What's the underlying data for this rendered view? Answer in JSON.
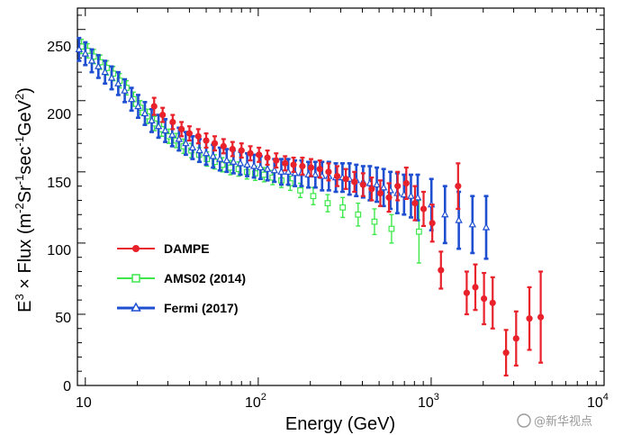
{
  "chart_data": {
    "type": "scatter",
    "title": "",
    "xlabel": "Energy (GeV)",
    "ylabel_main": "E",
    "ylabel_exp": "3",
    "ylabel_mid": " × Flux   (m",
    "ylabel_u1": "-2",
    "ylabel_u2": "Sr",
    "ylabel_u3": "-1",
    "ylabel_u4": "sec",
    "ylabel_u5": "-1",
    "ylabel_u6": "GeV",
    "ylabel_u7": "2",
    "ylabel_u8": ")",
    "xscale": "log",
    "xlim": [
      9,
      10000
    ],
    "ylim": [
      0,
      265
    ],
    "x_ticks": [
      {
        "value": 10,
        "base": "10",
        "exp": ""
      },
      {
        "value": 100,
        "base": "10",
        "exp": "2"
      },
      {
        "value": 1000,
        "base": "10",
        "exp": "3"
      },
      {
        "value": 10000,
        "base": "10",
        "exp": "4"
      }
    ],
    "y_ticks": [
      0,
      50,
      100,
      150,
      200,
      250
    ],
    "legend_position": "center-left",
    "series": [
      {
        "name": "DAMPE",
        "color": "#e8212a",
        "marker": "circle",
        "points": [
          {
            "x": 25,
            "y": 196,
            "err": 6
          },
          {
            "x": 28,
            "y": 190,
            "err": 5
          },
          {
            "x": 32,
            "y": 185,
            "err": 5
          },
          {
            "x": 36,
            "y": 180,
            "err": 5
          },
          {
            "x": 40,
            "y": 177,
            "err": 5
          },
          {
            "x": 45,
            "y": 175,
            "err": 5
          },
          {
            "x": 50,
            "y": 172,
            "err": 5
          },
          {
            "x": 56,
            "y": 170,
            "err": 5
          },
          {
            "x": 63,
            "y": 168,
            "err": 5
          },
          {
            "x": 71,
            "y": 166,
            "err": 5
          },
          {
            "x": 80,
            "y": 165,
            "err": 5
          },
          {
            "x": 90,
            "y": 163,
            "err": 5
          },
          {
            "x": 101,
            "y": 162,
            "err": 5
          },
          {
            "x": 113,
            "y": 160,
            "err": 5
          },
          {
            "x": 127,
            "y": 158,
            "err": 5
          },
          {
            "x": 143,
            "y": 156,
            "err": 5
          },
          {
            "x": 160,
            "y": 155,
            "err": 5
          },
          {
            "x": 180,
            "y": 154,
            "err": 6
          },
          {
            "x": 202,
            "y": 153,
            "err": 6
          },
          {
            "x": 227,
            "y": 152,
            "err": 6
          },
          {
            "x": 255,
            "y": 150,
            "err": 6
          },
          {
            "x": 286,
            "y": 147,
            "err": 7
          },
          {
            "x": 321,
            "y": 145,
            "err": 7
          },
          {
            "x": 360,
            "y": 143,
            "err": 7
          },
          {
            "x": 404,
            "y": 141,
            "err": 8
          },
          {
            "x": 453,
            "y": 138,
            "err": 8
          },
          {
            "x": 508,
            "y": 135,
            "err": 9
          },
          {
            "x": 570,
            "y": 132,
            "err": 10
          },
          {
            "x": 640,
            "y": 140,
            "err": 10
          },
          {
            "x": 718,
            "y": 142,
            "err": 11
          },
          {
            "x": 806,
            "y": 128,
            "err": 12
          },
          {
            "x": 904,
            "y": 124,
            "err": 12
          },
          {
            "x": 1015,
            "y": 114,
            "err": 13
          },
          {
            "x": 1139,
            "y": 81,
            "err": 13
          },
          {
            "x": 1431,
            "y": 140,
            "err": 16
          },
          {
            "x": 1605,
            "y": 65,
            "err": 15
          },
          {
            "x": 1801,
            "y": 69,
            "err": 16
          },
          {
            "x": 2021,
            "y": 61,
            "err": 18
          },
          {
            "x": 2268,
            "y": 58,
            "err": 18
          },
          {
            "x": 2711,
            "y": 23,
            "err": 16
          },
          {
            "x": 3100,
            "y": 33,
            "err": 19
          },
          {
            "x": 3700,
            "y": 47,
            "err": 22
          },
          {
            "x": 4300,
            "y": 48,
            "err": 32
          }
        ]
      },
      {
        "name": "AMS02 (2014)",
        "color": "#3ee84b",
        "marker": "square-open",
        "points": [
          {
            "x": 9.5,
            "y": 238,
            "err": 5
          },
          {
            "x": 10.3,
            "y": 235,
            "err": 5
          },
          {
            "x": 11.2,
            "y": 231,
            "err": 5
          },
          {
            "x": 12.2,
            "y": 227,
            "err": 5
          },
          {
            "x": 13.3,
            "y": 223,
            "err": 5
          },
          {
            "x": 14.5,
            "y": 219,
            "err": 5
          },
          {
            "x": 15.8,
            "y": 214,
            "err": 5
          },
          {
            "x": 17.3,
            "y": 209,
            "err": 5
          },
          {
            "x": 19.0,
            "y": 201,
            "err": 5
          },
          {
            "x": 20.8,
            "y": 195,
            "err": 5
          },
          {
            "x": 22.8,
            "y": 189,
            "err": 5
          },
          {
            "x": 25.1,
            "y": 184,
            "err": 5
          },
          {
            "x": 27.6,
            "y": 180,
            "err": 5
          },
          {
            "x": 30.4,
            "y": 175,
            "err": 5
          },
          {
            "x": 33.5,
            "y": 172,
            "err": 5
          },
          {
            "x": 37.0,
            "y": 168,
            "err": 5
          },
          {
            "x": 41.0,
            "y": 165,
            "err": 5
          },
          {
            "x": 45.5,
            "y": 162,
            "err": 5
          },
          {
            "x": 50.5,
            "y": 159,
            "err": 5
          },
          {
            "x": 56.0,
            "y": 157,
            "err": 5
          },
          {
            "x": 62.0,
            "y": 155,
            "err": 5
          },
          {
            "x": 69.0,
            "y": 153,
            "err": 5
          },
          {
            "x": 77.0,
            "y": 152,
            "err": 5
          },
          {
            "x": 86.0,
            "y": 150,
            "err": 5
          },
          {
            "x": 96.0,
            "y": 149,
            "err": 5
          },
          {
            "x": 108,
            "y": 148,
            "err": 5
          },
          {
            "x": 121,
            "y": 146,
            "err": 5
          },
          {
            "x": 136,
            "y": 144,
            "err": 5
          },
          {
            "x": 153,
            "y": 142,
            "err": 5
          },
          {
            "x": 175,
            "y": 137,
            "err": 5
          },
          {
            "x": 208,
            "y": 133,
            "err": 6
          },
          {
            "x": 252,
            "y": 128,
            "err": 6
          },
          {
            "x": 308,
            "y": 125,
            "err": 7
          },
          {
            "x": 378,
            "y": 120,
            "err": 8
          },
          {
            "x": 470,
            "y": 115,
            "err": 9
          },
          {
            "x": 590,
            "y": 110,
            "err": 10
          },
          {
            "x": 850,
            "y": 108,
            "err": 22
          }
        ]
      },
      {
        "name": "Fermi (2017)",
        "color": "#1f4fd1",
        "marker": "triangle-open",
        "points": [
          {
            "x": 9.2,
            "y": 236,
            "err": 8
          },
          {
            "x": 10.0,
            "y": 233,
            "err": 8
          },
          {
            "x": 10.9,
            "y": 228,
            "err": 8
          },
          {
            "x": 11.9,
            "y": 224,
            "err": 8
          },
          {
            "x": 13.0,
            "y": 220,
            "err": 8
          },
          {
            "x": 14.2,
            "y": 216,
            "err": 8
          },
          {
            "x": 15.5,
            "y": 212,
            "err": 8
          },
          {
            "x": 16.9,
            "y": 207,
            "err": 8
          },
          {
            "x": 18.5,
            "y": 201,
            "err": 8
          },
          {
            "x": 20.2,
            "y": 196,
            "err": 8
          },
          {
            "x": 22.1,
            "y": 191,
            "err": 8
          },
          {
            "x": 24.2,
            "y": 186,
            "err": 8
          },
          {
            "x": 26.5,
            "y": 182,
            "err": 8
          },
          {
            "x": 29.0,
            "y": 179,
            "err": 8
          },
          {
            "x": 31.8,
            "y": 176,
            "err": 8
          },
          {
            "x": 34.8,
            "y": 173,
            "err": 8
          },
          {
            "x": 38.1,
            "y": 170,
            "err": 8
          },
          {
            "x": 41.7,
            "y": 167,
            "err": 8
          },
          {
            "x": 45.7,
            "y": 165,
            "err": 8
          },
          {
            "x": 50.0,
            "y": 163,
            "err": 8
          },
          {
            "x": 54.8,
            "y": 161,
            "err": 8
          },
          {
            "x": 60.0,
            "y": 159,
            "err": 8
          },
          {
            "x": 65.7,
            "y": 158,
            "err": 8
          },
          {
            "x": 71.9,
            "y": 157,
            "err": 8
          },
          {
            "x": 78.8,
            "y": 156,
            "err": 8
          },
          {
            "x": 86.3,
            "y": 155,
            "err": 8
          },
          {
            "x": 94.5,
            "y": 154,
            "err": 8
          },
          {
            "x": 103,
            "y": 153,
            "err": 8
          },
          {
            "x": 113,
            "y": 152,
            "err": 8
          },
          {
            "x": 124,
            "y": 151,
            "err": 8
          },
          {
            "x": 136,
            "y": 150,
            "err": 9
          },
          {
            "x": 149,
            "y": 150,
            "err": 9
          },
          {
            "x": 163,
            "y": 149,
            "err": 9
          },
          {
            "x": 178,
            "y": 149,
            "err": 9
          },
          {
            "x": 195,
            "y": 148,
            "err": 9
          },
          {
            "x": 214,
            "y": 148,
            "err": 9
          },
          {
            "x": 234,
            "y": 147,
            "err": 10
          },
          {
            "x": 256,
            "y": 147,
            "err": 10
          },
          {
            "x": 281,
            "y": 146,
            "err": 10
          },
          {
            "x": 307,
            "y": 146,
            "err": 10
          },
          {
            "x": 337,
            "y": 145,
            "err": 11
          },
          {
            "x": 369,
            "y": 144,
            "err": 11
          },
          {
            "x": 404,
            "y": 143,
            "err": 11
          },
          {
            "x": 442,
            "y": 142,
            "err": 12
          },
          {
            "x": 485,
            "y": 141,
            "err": 12
          },
          {
            "x": 531,
            "y": 139,
            "err": 13
          },
          {
            "x": 581,
            "y": 137,
            "err": 13
          },
          {
            "x": 637,
            "y": 135,
            "err": 14
          },
          {
            "x": 697,
            "y": 134,
            "err": 14
          },
          {
            "x": 764,
            "y": 133,
            "err": 15
          },
          {
            "x": 836,
            "y": 132,
            "err": 16
          },
          {
            "x": 1003,
            "y": 127,
            "err": 18
          },
          {
            "x": 1202,
            "y": 120,
            "err": 20
          },
          {
            "x": 1445,
            "y": 116,
            "err": 20
          },
          {
            "x": 1733,
            "y": 113,
            "err": 20
          },
          {
            "x": 2080,
            "y": 111,
            "err": 22
          }
        ]
      }
    ]
  },
  "watermark": "@新华视点"
}
